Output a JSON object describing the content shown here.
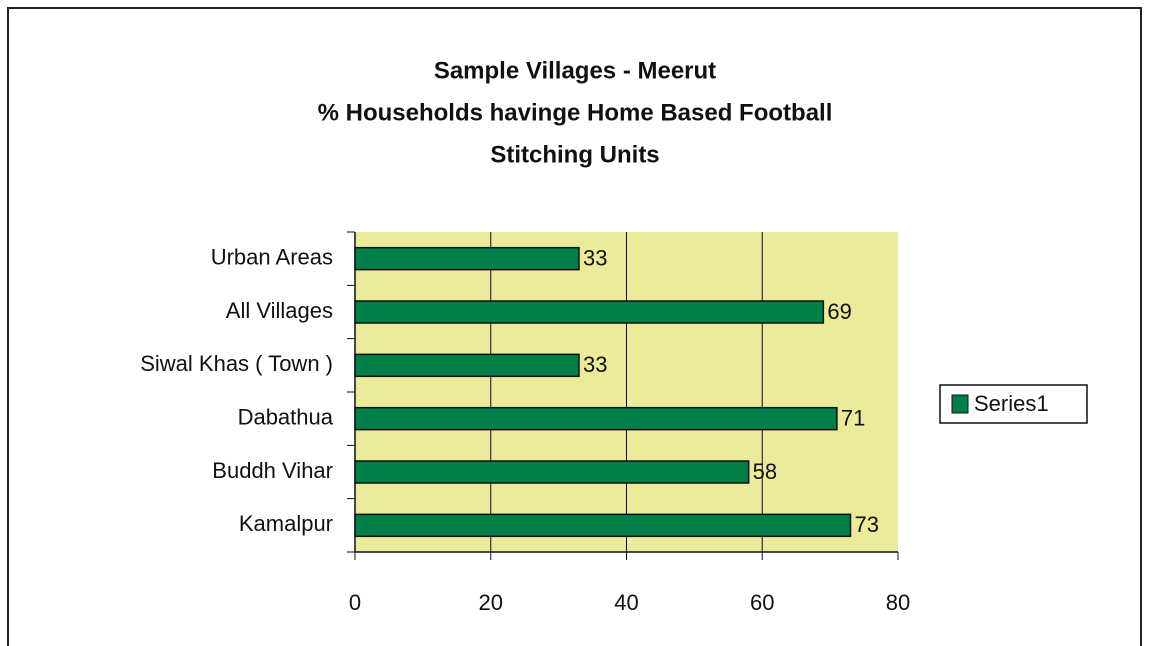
{
  "chart_data": {
    "type": "bar",
    "orientation": "horizontal",
    "title": [
      "Sample Villages - Meerut",
      "% Households havinge Home Based Football",
      "Stitching Units"
    ],
    "categories": [
      "Urban Areas",
      "All Villages",
      "Siwal Khas ( Town )",
      "Dabathua",
      "Buddh Vihar",
      "Kamalpur"
    ],
    "series": [
      {
        "name": "Series1",
        "color": "#007f46",
        "values": [
          33,
          69,
          33,
          71,
          58,
          73
        ]
      }
    ],
    "xlim": [
      0,
      80
    ],
    "xticks": [
      0,
      20,
      40,
      60,
      80
    ],
    "grid": true,
    "legend": "right",
    "plot_background": "#ebeb9a"
  }
}
